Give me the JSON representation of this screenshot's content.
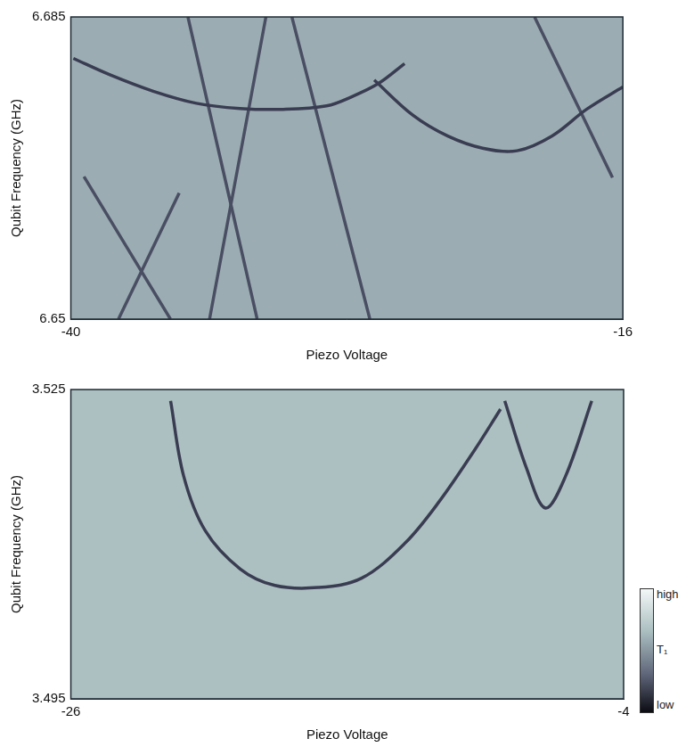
{
  "chart_data": [
    {
      "type": "line",
      "x_label": "Piezo Voltage",
      "y_label": "Qubit Frequency (GHz)",
      "xlim": [
        -40,
        -16
      ],
      "ylim": [
        6.65,
        6.685
      ],
      "xticks": [
        -40,
        -16
      ],
      "yticks": [
        6.65,
        6.685
      ],
      "grid": false,
      "marker": "none",
      "line_style": "solid",
      "series": [
        {
          "color": "#3a3d52",
          "x": [
            -39.89,
            -38.3,
            -36.42,
            -34.54,
            -32.65,
            -30.77,
            -28.88,
            -27.75,
            -26.62,
            -25.49
          ],
          "values": [
            6.6802,
            6.6783,
            6.6764,
            6.675,
            6.6744,
            6.6743,
            6.6747,
            6.6758,
            6.6773,
            6.6796
          ]
        },
        {
          "color": "#3a3d52",
          "x": [
            -26.81,
            -25.12,
            -23.61,
            -22.1,
            -20.6,
            -19.09,
            -17.58,
            -16.0
          ],
          "values": [
            6.6777,
            6.6736,
            6.6712,
            6.6698,
            6.6695,
            6.6712,
            6.6743,
            6.6769
          ]
        },
        {
          "color": "#4a4e63",
          "x": [
            -34.91,
            -31.9
          ],
          "values": [
            6.685,
            6.65
          ]
        },
        {
          "color": "#4a4e63",
          "x": [
            -31.52,
            -33.97
          ],
          "values": [
            6.685,
            6.65
          ]
        },
        {
          "color": "#4a4e63",
          "x": [
            -39.43,
            -35.67
          ],
          "values": [
            6.6665,
            6.65
          ]
        },
        {
          "color": "#4a4e63",
          "x": [
            -35.29,
            -37.93
          ],
          "values": [
            6.6646,
            6.65
          ]
        },
        {
          "color": "#4a4e63",
          "x": [
            -30.39,
            -27.0
          ],
          "values": [
            6.685,
            6.65
          ]
        },
        {
          "color": "#4a4e63",
          "x": [
            -19.84,
            -16.45
          ],
          "values": [
            6.685,
            6.6664
          ]
        }
      ]
    },
    {
      "type": "line",
      "x_label": "Piezo Voltage",
      "y_label": "Qubit Frequency (GHz)",
      "xlim": [
        -26,
        -4
      ],
      "ylim": [
        3.495,
        3.525
      ],
      "xticks": [
        -26,
        -4
      ],
      "yticks": [
        3.495,
        3.525
      ],
      "grid": false,
      "marker": "none",
      "line_style": "solid",
      "series": [
        {
          "color": "#3a3d52",
          "x": [
            -22.03,
            -21.51,
            -20.65,
            -19.26,
            -17.88,
            -16.16,
            -14.43,
            -12.7,
            -11.32,
            -9.94,
            -8.9
          ],
          "values": [
            3.5239,
            3.5166,
            3.5113,
            3.5076,
            3.506,
            3.5058,
            3.5067,
            3.5101,
            3.5142,
            3.5191,
            3.5231
          ]
        },
        {
          "color": "#3a3d52",
          "x": [
            -8.73,
            -7.87,
            -7.11,
            -6.31,
            -5.27
          ],
          "values": [
            3.5239,
            3.5174,
            3.5135,
            3.5166,
            3.5239
          ]
        }
      ],
      "color_bar": {
        "label": "T₁",
        "high": "high",
        "low": "low"
      }
    }
  ]
}
